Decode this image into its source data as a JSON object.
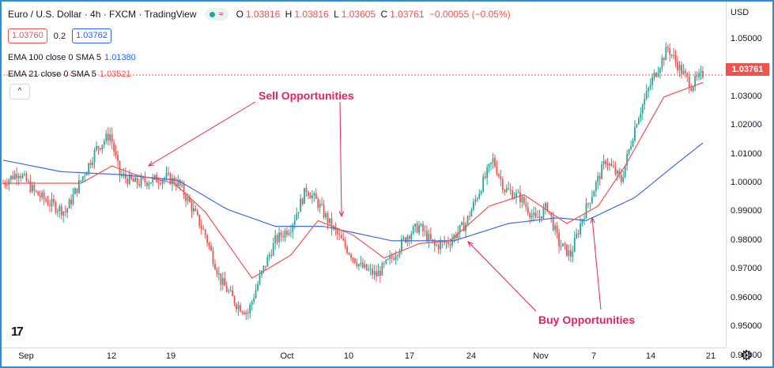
{
  "header": {
    "symbol": "Euro / U.S. Dollar · 4h · FXCM · TradingView",
    "pill_label": "≈",
    "ohlc": [
      {
        "key": "O",
        "value": "1.03816"
      },
      {
        "key": "H",
        "value": "1.03816"
      },
      {
        "key": "L",
        "value": "1.03605"
      },
      {
        "key": "C",
        "value": "1.03761"
      },
      {
        "key": "",
        "value": "−0.00055 (−0.05%)"
      }
    ]
  },
  "trade": {
    "sell": "1.03760",
    "spread": "0.2",
    "buy": "1.03762"
  },
  "indicators": {
    "ema100_label": "EMA 100 close 0 SMA 5",
    "ema100_value": "1.01380",
    "ema21_label": "EMA 21 close 0 SMA 5",
    "ema21_value": "1.03521",
    "collapse_icon": "^"
  },
  "axis": {
    "currency": "USD",
    "current_price": "1.03761",
    "colors": {
      "up": "#26a69a",
      "down": "#ef5350",
      "ema21": "#ef5350",
      "ema100": "#3c6be0",
      "annotation": "#e91e63"
    }
  },
  "annotations": {
    "sell": "Sell Opportunities",
    "buy": "Buy Opportunities"
  },
  "chart_data": {
    "type": "candlestick",
    "title": "Euro / U.S. Dollar · 4h · FXCM · TradingView",
    "ylim": [
      0.944,
      1.056
    ],
    "y_ticks": [
      "1.05000",
      "1.04000",
      "1.03000",
      "1.02000",
      "1.01000",
      "1.00000",
      "0.99000",
      "0.98000",
      "0.97000",
      "0.96000",
      "0.95000",
      "0.94000"
    ],
    "x_ticks": [
      "Sep",
      "12",
      "19",
      "Oct",
      "10",
      "17",
      "24",
      "Nov",
      "7",
      "14",
      "21"
    ],
    "close_anchors": [
      {
        "t": 0,
        "v": 1.0
      },
      {
        "t": 8,
        "v": 1.004
      },
      {
        "t": 16,
        "v": 0.997
      },
      {
        "t": 24,
        "v": 0.993
      },
      {
        "t": 32,
        "v": 0.99
      },
      {
        "t": 40,
        "v": 1.001
      },
      {
        "t": 48,
        "v": 1.012
      },
      {
        "t": 55,
        "v": 1.017
      },
      {
        "t": 60,
        "v": 1.003
      },
      {
        "t": 68,
        "v": 1.0
      },
      {
        "t": 76,
        "v": 1.001
      },
      {
        "t": 84,
        "v": 1.002
      },
      {
        "t": 90,
        "v": 1.0
      },
      {
        "t": 96,
        "v": 0.993
      },
      {
        "t": 104,
        "v": 0.982
      },
      {
        "t": 112,
        "v": 0.966
      },
      {
        "t": 120,
        "v": 0.958
      },
      {
        "t": 126,
        "v": 0.955
      },
      {
        "t": 132,
        "v": 0.967
      },
      {
        "t": 140,
        "v": 0.98
      },
      {
        "t": 148,
        "v": 0.985
      },
      {
        "t": 156,
        "v": 0.998
      },
      {
        "t": 162,
        "v": 0.993
      },
      {
        "t": 168,
        "v": 0.986
      },
      {
        "t": 176,
        "v": 0.978
      },
      {
        "t": 184,
        "v": 0.971
      },
      {
        "t": 192,
        "v": 0.968
      },
      {
        "t": 200,
        "v": 0.974
      },
      {
        "t": 208,
        "v": 0.982
      },
      {
        "t": 214,
        "v": 0.985
      },
      {
        "t": 222,
        "v": 0.978
      },
      {
        "t": 230,
        "v": 0.98
      },
      {
        "t": 238,
        "v": 0.986
      },
      {
        "t": 246,
        "v": 0.999
      },
      {
        "t": 252,
        "v": 1.008
      },
      {
        "t": 258,
        "v": 0.998
      },
      {
        "t": 266,
        "v": 0.995
      },
      {
        "t": 274,
        "v": 0.987
      },
      {
        "t": 280,
        "v": 0.992
      },
      {
        "t": 286,
        "v": 0.979
      },
      {
        "t": 292,
        "v": 0.975
      },
      {
        "t": 298,
        "v": 0.988
      },
      {
        "t": 304,
        "v": 0.998
      },
      {
        "t": 310,
        "v": 1.008
      },
      {
        "t": 318,
        "v": 1.001
      },
      {
        "t": 326,
        "v": 1.022
      },
      {
        "t": 334,
        "v": 1.036
      },
      {
        "t": 342,
        "v": 1.047
      },
      {
        "t": 348,
        "v": 1.04
      },
      {
        "t": 354,
        "v": 1.034
      },
      {
        "t": 360,
        "v": 1.038
      }
    ],
    "ema21_anchors": [
      {
        "t": 0,
        "v": 1.0
      },
      {
        "t": 40,
        "v": 1.0
      },
      {
        "t": 56,
        "v": 1.006
      },
      {
        "t": 68,
        "v": 1.003
      },
      {
        "t": 88,
        "v": 1.0
      },
      {
        "t": 104,
        "v": 0.99
      },
      {
        "t": 128,
        "v": 0.967
      },
      {
        "t": 148,
        "v": 0.975
      },
      {
        "t": 162,
        "v": 0.987
      },
      {
        "t": 180,
        "v": 0.982
      },
      {
        "t": 196,
        "v": 0.974
      },
      {
        "t": 214,
        "v": 0.979
      },
      {
        "t": 230,
        "v": 0.98
      },
      {
        "t": 250,
        "v": 0.992
      },
      {
        "t": 268,
        "v": 0.996
      },
      {
        "t": 290,
        "v": 0.986
      },
      {
        "t": 306,
        "v": 0.992
      },
      {
        "t": 320,
        "v": 1.006
      },
      {
        "t": 340,
        "v": 1.03
      },
      {
        "t": 360,
        "v": 1.035
      }
    ],
    "ema100_anchors": [
      {
        "t": 0,
        "v": 1.008
      },
      {
        "t": 30,
        "v": 1.004
      },
      {
        "t": 60,
        "v": 1.003
      },
      {
        "t": 90,
        "v": 1.001
      },
      {
        "t": 115,
        "v": 0.991
      },
      {
        "t": 140,
        "v": 0.985
      },
      {
        "t": 165,
        "v": 0.985
      },
      {
        "t": 200,
        "v": 0.98
      },
      {
        "t": 232,
        "v": 0.98
      },
      {
        "t": 260,
        "v": 0.986
      },
      {
        "t": 285,
        "v": 0.988
      },
      {
        "t": 300,
        "v": 0.987
      },
      {
        "t": 325,
        "v": 0.995
      },
      {
        "t": 345,
        "v": 1.006
      },
      {
        "t": 360,
        "v": 1.014
      }
    ]
  }
}
